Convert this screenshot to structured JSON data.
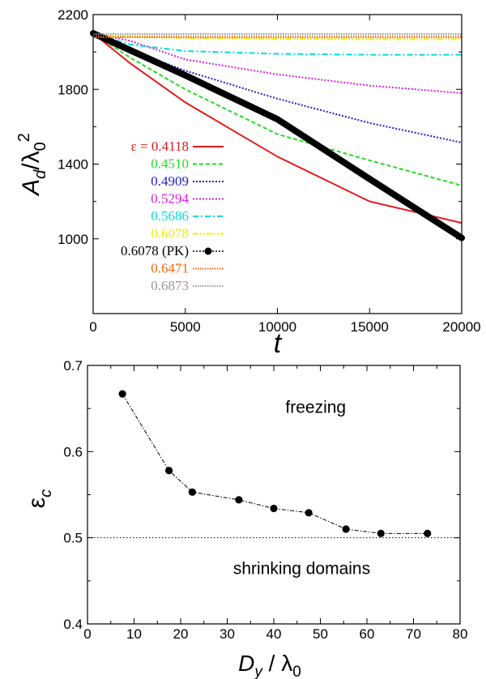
{
  "chart_data": [
    {
      "type": "line",
      "xlabel": "t",
      "ylabel": "A_d/λ_0^2",
      "xlim": [
        0,
        20000
      ],
      "ylim": [
        600,
        2200
      ],
      "xticks": [
        "0",
        "5000",
        "10000",
        "15000",
        "20000"
      ],
      "yticks": [
        "1000",
        "1400",
        "1800",
        "2200"
      ],
      "legend_position": "left",
      "series": [
        {
          "name": "ε = 0.4118",
          "color": "#e41a1c",
          "style": "solid",
          "x": [
            0,
            2000,
            5000,
            10000,
            15000,
            20000
          ],
          "y": [
            2100,
            1940,
            1730,
            1440,
            1200,
            1085
          ]
        },
        {
          "name": "0.4510",
          "color": "#22dd22",
          "style": "dashed",
          "x": [
            0,
            2000,
            5000,
            10000,
            15000,
            20000
          ],
          "y": [
            2100,
            1970,
            1800,
            1560,
            1420,
            1285
          ]
        },
        {
          "name": "0.4909",
          "color": "#2222cc",
          "style": "dotted",
          "x": [
            0,
            2000,
            5000,
            10000,
            15000,
            20000
          ],
          "y": [
            2100,
            2010,
            1900,
            1750,
            1620,
            1515
          ]
        },
        {
          "name": "0.5294",
          "color": "#e020e0",
          "style": "dotted",
          "x": [
            0,
            2000,
            5000,
            10000,
            15000,
            20000
          ],
          "y": [
            2100,
            2060,
            1960,
            1880,
            1820,
            1780
          ]
        },
        {
          "name": "0.5686",
          "color": "#00dddd",
          "style": "dashdot",
          "x": [
            0,
            2000,
            5000,
            10000,
            15000,
            20000
          ],
          "y": [
            2100,
            2040,
            2005,
            1990,
            1985,
            1985
          ]
        },
        {
          "name": "0.6078",
          "color": "#f0f000",
          "style": "dashdotdot",
          "x": [
            0,
            5000,
            10000,
            15000,
            20000
          ],
          "y": [
            2085,
            2075,
            2070,
            2068,
            2068
          ]
        },
        {
          "name": "0.6078 (PK)",
          "color": "#000000",
          "style": "thick",
          "x": [
            0,
            5000,
            10000,
            15000,
            20000
          ],
          "y": [
            2100,
            1875,
            1640,
            1320,
            1005
          ]
        },
        {
          "name": "0.6471",
          "color": "#ff6600",
          "style": "densedot",
          "x": [
            0,
            5000,
            10000,
            15000,
            20000
          ],
          "y": [
            2080,
            2080,
            2080,
            2080,
            2080
          ]
        },
        {
          "name": "0.6873",
          "color": "#999999",
          "style": "densedot",
          "x": [
            0,
            5000,
            10000,
            15000,
            20000
          ],
          "y": [
            2095,
            2095,
            2095,
            2095,
            2095
          ]
        }
      ]
    },
    {
      "type": "line",
      "xlabel": "D_y / λ_0",
      "ylabel": "ε_c",
      "xlim": [
        0,
        80
      ],
      "ylim": [
        0.4,
        0.7
      ],
      "xticks": [
        "0",
        "10",
        "20",
        "30",
        "40",
        "50",
        "60",
        "70",
        "80"
      ],
      "yticks": [
        "0.4",
        "0.5",
        "0.6",
        "0.7"
      ],
      "reference_line": 0.5,
      "annotations": [
        "freezing",
        "shrinking domains"
      ],
      "series": [
        {
          "color": "#000000",
          "x": [
            7.5,
            17.5,
            22.5,
            32.5,
            40,
            47.5,
            55.5,
            63,
            73
          ],
          "y": [
            0.667,
            0.578,
            0.553,
            0.544,
            0.534,
            0.529,
            0.51,
            0.505,
            0.505
          ]
        }
      ]
    }
  ]
}
